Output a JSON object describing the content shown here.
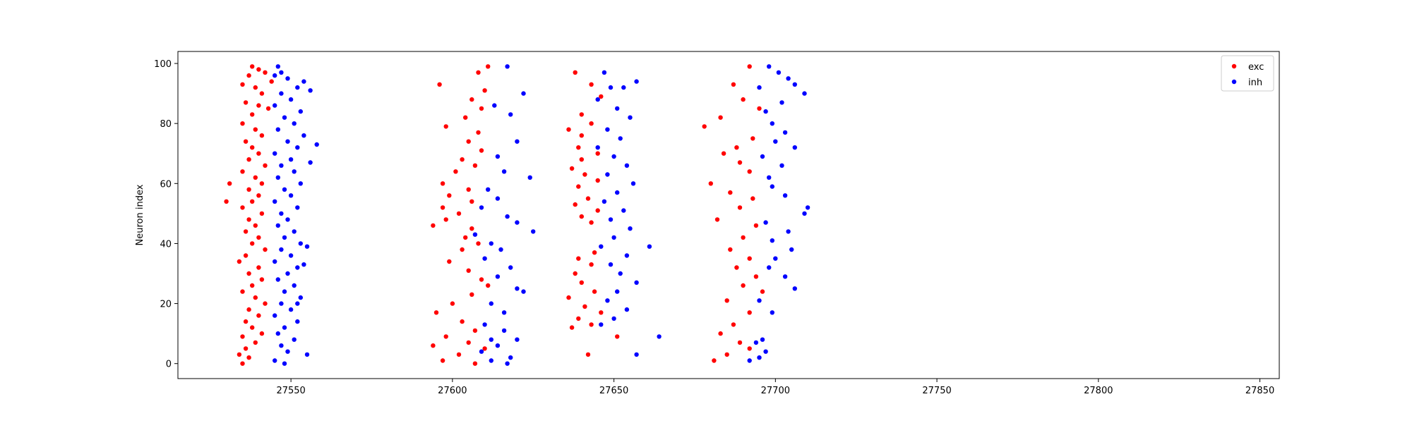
{
  "chart_data": {
    "type": "scatter",
    "title": "",
    "xlabel": "",
    "ylabel": "Neuron index",
    "xlim": [
      27515,
      27856
    ],
    "ylim": [
      -5,
      104
    ],
    "xticks": [
      27550,
      27600,
      27650,
      27700,
      27750,
      27800,
      27850
    ],
    "yticks": [
      0,
      20,
      40,
      60,
      80,
      100
    ],
    "grid": false,
    "legend": "top-right",
    "series": [
      {
        "name": "exc",
        "color": "#ff0000",
        "points": [
          [
            27538,
            99
          ],
          [
            27540,
            98
          ],
          [
            27537,
            96
          ],
          [
            27542,
            97
          ],
          [
            27535,
            93
          ],
          [
            27539,
            92
          ],
          [
            27544,
            94
          ],
          [
            27541,
            90
          ],
          [
            27536,
            87
          ],
          [
            27540,
            86
          ],
          [
            27538,
            83
          ],
          [
            27543,
            85
          ],
          [
            27535,
            80
          ],
          [
            27539,
            78
          ],
          [
            27541,
            76
          ],
          [
            27536,
            74
          ],
          [
            27538,
            72
          ],
          [
            27540,
            70
          ],
          [
            27537,
            68
          ],
          [
            27542,
            66
          ],
          [
            27535,
            64
          ],
          [
            27539,
            62
          ],
          [
            27541,
            60
          ],
          [
            27531,
            60
          ],
          [
            27537,
            58
          ],
          [
            27540,
            56
          ],
          [
            27538,
            54
          ],
          [
            27530,
            54
          ],
          [
            27535,
            52
          ],
          [
            27541,
            50
          ],
          [
            27537,
            48
          ],
          [
            27539,
            46
          ],
          [
            27536,
            44
          ],
          [
            27540,
            42
          ],
          [
            27538,
            40
          ],
          [
            27542,
            38
          ],
          [
            27536,
            36
          ],
          [
            27534,
            34
          ],
          [
            27540,
            32
          ],
          [
            27537,
            30
          ],
          [
            27541,
            28
          ],
          [
            27538,
            26
          ],
          [
            27535,
            24
          ],
          [
            27539,
            22
          ],
          [
            27542,
            20
          ],
          [
            27537,
            18
          ],
          [
            27540,
            16
          ],
          [
            27536,
            14
          ],
          [
            27538,
            12
          ],
          [
            27541,
            10
          ],
          [
            27535,
            9
          ],
          [
            27539,
            7
          ],
          [
            27536,
            5
          ],
          [
            27534,
            3
          ],
          [
            27537,
            2
          ],
          [
            27535,
            0
          ],
          [
            27611,
            99
          ],
          [
            27608,
            97
          ],
          [
            27596,
            93
          ],
          [
            27610,
            91
          ],
          [
            27606,
            88
          ],
          [
            27609,
            85
          ],
          [
            27604,
            82
          ],
          [
            27598,
            79
          ],
          [
            27608,
            77
          ],
          [
            27605,
            74
          ],
          [
            27609,
            71
          ],
          [
            27603,
            68
          ],
          [
            27607,
            66
          ],
          [
            27601,
            64
          ],
          [
            27597,
            60
          ],
          [
            27605,
            58
          ],
          [
            27599,
            56
          ],
          [
            27606,
            54
          ],
          [
            27597,
            52
          ],
          [
            27602,
            50
          ],
          [
            27598,
            48
          ],
          [
            27594,
            46
          ],
          [
            27606,
            45
          ],
          [
            27604,
            42
          ],
          [
            27608,
            40
          ],
          [
            27603,
            38
          ],
          [
            27599,
            34
          ],
          [
            27605,
            31
          ],
          [
            27609,
            28
          ],
          [
            27611,
            26
          ],
          [
            27606,
            23
          ],
          [
            27600,
            20
          ],
          [
            27595,
            17
          ],
          [
            27603,
            14
          ],
          [
            27607,
            11
          ],
          [
            27598,
            9
          ],
          [
            27605,
            7
          ],
          [
            27594,
            6
          ],
          [
            27610,
            5
          ],
          [
            27602,
            3
          ],
          [
            27597,
            1
          ],
          [
            27607,
            0
          ],
          [
            27638,
            97
          ],
          [
            27643,
            93
          ],
          [
            27646,
            89
          ],
          [
            27640,
            83
          ],
          [
            27643,
            80
          ],
          [
            27636,
            78
          ],
          [
            27640,
            76
          ],
          [
            27639,
            72
          ],
          [
            27645,
            70
          ],
          [
            27640,
            68
          ],
          [
            27637,
            65
          ],
          [
            27641,
            63
          ],
          [
            27645,
            61
          ],
          [
            27639,
            59
          ],
          [
            27642,
            55
          ],
          [
            27638,
            53
          ],
          [
            27645,
            51
          ],
          [
            27640,
            49
          ],
          [
            27643,
            47
          ],
          [
            27644,
            37
          ],
          [
            27639,
            35
          ],
          [
            27643,
            33
          ],
          [
            27638,
            30
          ],
          [
            27640,
            27
          ],
          [
            27644,
            24
          ],
          [
            27636,
            22
          ],
          [
            27641,
            19
          ],
          [
            27646,
            17
          ],
          [
            27639,
            15
          ],
          [
            27643,
            13
          ],
          [
            27637,
            12
          ],
          [
            27651,
            9
          ],
          [
            27642,
            3
          ],
          [
            27692,
            99
          ],
          [
            27687,
            93
          ],
          [
            27683,
            82
          ],
          [
            27690,
            88
          ],
          [
            27695,
            85
          ],
          [
            27678,
            79
          ],
          [
            27693,
            75
          ],
          [
            27688,
            72
          ],
          [
            27684,
            70
          ],
          [
            27689,
            67
          ],
          [
            27692,
            64
          ],
          [
            27680,
            60
          ],
          [
            27686,
            57
          ],
          [
            27693,
            55
          ],
          [
            27689,
            52
          ],
          [
            27682,
            48
          ],
          [
            27694,
            46
          ],
          [
            27690,
            42
          ],
          [
            27686,
            38
          ],
          [
            27692,
            35
          ],
          [
            27688,
            32
          ],
          [
            27694,
            29
          ],
          [
            27690,
            26
          ],
          [
            27696,
            24
          ],
          [
            27685,
            21
          ],
          [
            27692,
            17
          ],
          [
            27687,
            13
          ],
          [
            27683,
            10
          ],
          [
            27689,
            7
          ],
          [
            27692,
            5
          ],
          [
            27685,
            3
          ],
          [
            27681,
            1
          ]
        ]
      },
      {
        "name": "inh",
        "color": "#0000ff",
        "points": [
          [
            27546,
            99
          ],
          [
            27547,
            97
          ],
          [
            27545,
            96
          ],
          [
            27549,
            95
          ],
          [
            27554,
            94
          ],
          [
            27552,
            92
          ],
          [
            27547,
            90
          ],
          [
            27550,
            88
          ],
          [
            27545,
            86
          ],
          [
            27553,
            84
          ],
          [
            27548,
            82
          ],
          [
            27551,
            80
          ],
          [
            27546,
            78
          ],
          [
            27554,
            76
          ],
          [
            27549,
            74
          ],
          [
            27552,
            72
          ],
          [
            27545,
            70
          ],
          [
            27550,
            68
          ],
          [
            27547,
            66
          ],
          [
            27551,
            64
          ],
          [
            27546,
            62
          ],
          [
            27553,
            60
          ],
          [
            27548,
            58
          ],
          [
            27550,
            56
          ],
          [
            27545,
            54
          ],
          [
            27552,
            52
          ],
          [
            27547,
            50
          ],
          [
            27549,
            48
          ],
          [
            27546,
            46
          ],
          [
            27551,
            44
          ],
          [
            27548,
            42
          ],
          [
            27553,
            40
          ],
          [
            27547,
            38
          ],
          [
            27550,
            36
          ],
          [
            27545,
            34
          ],
          [
            27552,
            32
          ],
          [
            27549,
            30
          ],
          [
            27546,
            28
          ],
          [
            27551,
            26
          ],
          [
            27548,
            24
          ],
          [
            27553,
            22
          ],
          [
            27547,
            20
          ],
          [
            27550,
            18
          ],
          [
            27545,
            16
          ],
          [
            27552,
            14
          ],
          [
            27548,
            12
          ],
          [
            27546,
            10
          ],
          [
            27551,
            8
          ],
          [
            27547,
            6
          ],
          [
            27549,
            4
          ],
          [
            27555,
            3
          ],
          [
            27545,
            1
          ],
          [
            27548,
            0
          ],
          [
            27556,
            91
          ],
          [
            27558,
            73
          ],
          [
            27556,
            67
          ],
          [
            27555,
            39
          ],
          [
            27554,
            33
          ],
          [
            27552,
            20
          ],
          [
            27617,
            99
          ],
          [
            27622,
            90
          ],
          [
            27613,
            86
          ],
          [
            27618,
            83
          ],
          [
            27620,
            74
          ],
          [
            27614,
            69
          ],
          [
            27616,
            64
          ],
          [
            27624,
            62
          ],
          [
            27611,
            58
          ],
          [
            27614,
            55
          ],
          [
            27609,
            52
          ],
          [
            27617,
            49
          ],
          [
            27620,
            47
          ],
          [
            27607,
            43
          ],
          [
            27612,
            40
          ],
          [
            27615,
            38
          ],
          [
            27610,
            35
          ],
          [
            27618,
            32
          ],
          [
            27614,
            29
          ],
          [
            27620,
            25
          ],
          [
            27622,
            24
          ],
          [
            27612,
            20
          ],
          [
            27616,
            17
          ],
          [
            27610,
            13
          ],
          [
            27616,
            11
          ],
          [
            27612,
            8
          ],
          [
            27620,
            8
          ],
          [
            27614,
            6
          ],
          [
            27609,
            4
          ],
          [
            27618,
            2
          ],
          [
            27612,
            1
          ],
          [
            27617,
            0
          ],
          [
            27625,
            44
          ],
          [
            27647,
            97
          ],
          [
            27649,
            92
          ],
          [
            27645,
            88
          ],
          [
            27653,
            92
          ],
          [
            27657,
            94
          ],
          [
            27651,
            85
          ],
          [
            27655,
            82
          ],
          [
            27648,
            78
          ],
          [
            27652,
            75
          ],
          [
            27645,
            72
          ],
          [
            27650,
            69
          ],
          [
            27654,
            66
          ],
          [
            27648,
            63
          ],
          [
            27656,
            60
          ],
          [
            27651,
            57
          ],
          [
            27647,
            54
          ],
          [
            27653,
            51
          ],
          [
            27649,
            48
          ],
          [
            27655,
            45
          ],
          [
            27650,
            42
          ],
          [
            27646,
            39
          ],
          [
            27654,
            36
          ],
          [
            27649,
            33
          ],
          [
            27652,
            30
          ],
          [
            27657,
            27
          ],
          [
            27651,
            24
          ],
          [
            27648,
            21
          ],
          [
            27654,
            18
          ],
          [
            27650,
            15
          ],
          [
            27646,
            13
          ],
          [
            27657,
            3
          ],
          [
            27664,
            9
          ],
          [
            27661,
            39
          ],
          [
            27698,
            99
          ],
          [
            27701,
            97
          ],
          [
            27704,
            95
          ],
          [
            27695,
            92
          ],
          [
            27706,
            93
          ],
          [
            27709,
            90
          ],
          [
            27702,
            87
          ],
          [
            27697,
            84
          ],
          [
            27699,
            80
          ],
          [
            27703,
            77
          ],
          [
            27700,
            74
          ],
          [
            27706,
            72
          ],
          [
            27696,
            69
          ],
          [
            27702,
            66
          ],
          [
            27698,
            62
          ],
          [
            27699,
            59
          ],
          [
            27703,
            56
          ],
          [
            27710,
            52
          ],
          [
            27709,
            50
          ],
          [
            27697,
            47
          ],
          [
            27704,
            44
          ],
          [
            27699,
            41
          ],
          [
            27705,
            38
          ],
          [
            27700,
            35
          ],
          [
            27698,
            32
          ],
          [
            27703,
            29
          ],
          [
            27706,
            25
          ],
          [
            27695,
            21
          ],
          [
            27699,
            17
          ],
          [
            27696,
            8
          ],
          [
            27694,
            7
          ],
          [
            27697,
            4
          ],
          [
            27695,
            2
          ],
          [
            27692,
            1
          ]
        ]
      }
    ]
  }
}
